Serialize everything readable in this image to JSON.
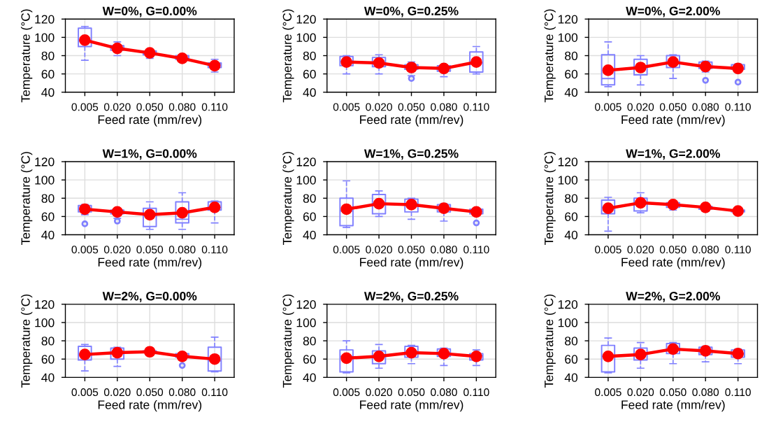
{
  "chart_data": [
    {
      "type": "box",
      "title": "W=0%, G=0.00%",
      "xlabel": "Feed rate (mm/rev)",
      "ylabel": "Temperature (°C)",
      "categories": [
        "0.005",
        "0.020",
        "0.050",
        "0.080",
        "0.110"
      ],
      "ylim": [
        40,
        120
      ],
      "yticks": [
        40,
        60,
        80,
        100,
        120
      ],
      "grid": true,
      "marker": "circle",
      "series": [
        {
          "color": "#8080ff",
          "boxes": [
            {
              "low": 75,
              "q1": 90,
              "median": 96,
              "q3": 110,
              "high": 112
            },
            {
              "low": 80,
              "q1": 86,
              "median": 88,
              "q3": 91,
              "high": 95
            },
            {
              "low": 77,
              "q1": 81,
              "median": 83,
              "q3": 85,
              "high": 86
            },
            {
              "low": 74,
              "q1": 76,
              "median": 77,
              "q3": 80,
              "high": 81
            },
            {
              "low": 62,
              "q1": 67,
              "median": 70,
              "q3": 72,
              "high": 76
            }
          ]
        },
        {
          "type": "line",
          "color": "#ff0000",
          "values": [
            97,
            88,
            83,
            77,
            69
          ]
        }
      ]
    },
    {
      "type": "box",
      "title": "W=0%, G=0.25%",
      "xlabel": "Feed rate (mm/rev)",
      "ylabel": "Temperature (°C)",
      "categories": [
        "0.005",
        "0.020",
        "0.050",
        "0.080",
        "0.110"
      ],
      "ylim": [
        40,
        120
      ],
      "yticks": [
        40,
        60,
        80,
        100,
        120
      ],
      "grid": true,
      "marker": "circle",
      "series": [
        {
          "color": "#8080ff",
          "boxes": [
            {
              "low": 60,
              "q1": 69,
              "median": 74,
              "q3": 79,
              "high": 80
            },
            {
              "low": 60,
              "q1": 68,
              "median": 72,
              "q3": 78,
              "high": 81
            },
            {
              "low": 58,
              "q1": 65,
              "median": 67,
              "q3": 70,
              "high": 73,
              "outliers": [
                55
              ]
            },
            {
              "low": 57,
              "q1": 63,
              "median": 66,
              "q3": 69,
              "high": 70
            },
            {
              "low": 60,
              "q1": 62,
              "median": 72,
              "q3": 84,
              "high": 90
            }
          ]
        },
        {
          "type": "line",
          "color": "#ff0000",
          "values": [
            73,
            72,
            67,
            66,
            73
          ]
        }
      ]
    },
    {
      "type": "box",
      "title": "W=0%, G=2.00%",
      "xlabel": "Feed rate (mm/rev)",
      "ylabel": "Temperature (°C)",
      "categories": [
        "0.005",
        "0.020",
        "0.050",
        "0.080",
        "0.110"
      ],
      "ylim": [
        40,
        120
      ],
      "yticks": [
        40,
        60,
        80,
        100,
        120
      ],
      "grid": true,
      "marker": "circle",
      "series": [
        {
          "color": "#8080ff",
          "boxes": [
            {
              "low": 46,
              "q1": 48,
              "median": 55,
              "q3": 81,
              "high": 95
            },
            {
              "low": 48,
              "q1": 59,
              "median": 68,
              "q3": 76,
              "high": 80
            },
            {
              "low": 55,
              "q1": 67,
              "median": 72,
              "q3": 80,
              "high": 81
            },
            {
              "low": 62,
              "q1": 66,
              "median": 68,
              "q3": 73,
              "high": 74,
              "outliers": [
                53
              ]
            },
            {
              "low": 63,
              "q1": 65,
              "median": 66,
              "q3": 70,
              "high": 71,
              "outliers": [
                51
              ]
            }
          ]
        },
        {
          "type": "line",
          "color": "#ff0000",
          "values": [
            64,
            67,
            73,
            68,
            66
          ]
        }
      ]
    },
    {
      "type": "box",
      "title": "W=1%, G=0.00%",
      "xlabel": "Feed rate (mm/rev)",
      "ylabel": "Temperature (°C)",
      "categories": [
        "0.005",
        "0.020",
        "0.050",
        "0.080",
        "0.110"
      ],
      "ylim": [
        40,
        120
      ],
      "yticks": [
        40,
        60,
        80,
        100,
        120
      ],
      "grid": true,
      "marker": "circle",
      "series": [
        {
          "color": "#8080ff",
          "boxes": [
            {
              "low": 62,
              "q1": 65,
              "median": 68,
              "q3": 72,
              "high": 73,
              "outliers": [
                52
              ]
            },
            {
              "low": 58,
              "q1": 63,
              "median": 65,
              "q3": 67,
              "high": 68,
              "outliers": [
                55
              ]
            },
            {
              "low": 46,
              "q1": 49,
              "median": 61,
              "q3": 69,
              "high": 76
            },
            {
              "low": 46,
              "q1": 53,
              "median": 57,
              "q3": 76,
              "high": 86
            },
            {
              "low": 53,
              "q1": 67,
              "median": 70,
              "q3": 76,
              "high": 77
            }
          ]
        },
        {
          "type": "line",
          "color": "#ff0000",
          "values": [
            68,
            65,
            62,
            64,
            70
          ]
        }
      ]
    },
    {
      "type": "box",
      "title": "W=1%, G=0.25%",
      "xlabel": "Feed rate (mm/rev)",
      "ylabel": "Temperature (°C)",
      "categories": [
        "0.005",
        "0.020",
        "0.050",
        "0.080",
        "0.110"
      ],
      "ylim": [
        40,
        120
      ],
      "yticks": [
        40,
        60,
        80,
        100,
        120
      ],
      "grid": true,
      "marker": "circle",
      "series": [
        {
          "color": "#8080ff",
          "boxes": [
            {
              "low": 48,
              "q1": 50,
              "median": 66,
              "q3": 80,
              "high": 99
            },
            {
              "low": 60,
              "q1": 63,
              "median": 74,
              "q3": 84,
              "high": 88
            },
            {
              "low": 57,
              "q1": 65,
              "median": 74,
              "q3": 79,
              "high": 80
            },
            {
              "low": 55,
              "q1": 65,
              "median": 69,
              "q3": 73,
              "high": 74
            },
            {
              "low": 62,
              "q1": 63,
              "median": 66,
              "q3": 68,
              "high": 69,
              "outliers": [
                53
              ]
            }
          ]
        },
        {
          "type": "line",
          "color": "#ff0000",
          "values": [
            68,
            74,
            73,
            69,
            65
          ]
        }
      ]
    },
    {
      "type": "box",
      "title": "W=1%, G=2.00%",
      "xlabel": "Feed rate (mm/rev)",
      "ylabel": "Temperature (°C)",
      "categories": [
        "0.005",
        "0.020",
        "0.050",
        "0.080",
        "0.110"
      ],
      "ylim": [
        40,
        120
      ],
      "yticks": [
        40,
        60,
        80,
        100,
        120
      ],
      "grid": true,
      "marker": "circle",
      "series": [
        {
          "color": "#8080ff",
          "boxes": [
            {
              "low": 44,
              "q1": 63,
              "median": 70,
              "q3": 78,
              "high": 81
            },
            {
              "low": 64,
              "q1": 66,
              "median": 74,
              "q3": 80,
              "high": 86
            },
            {
              "low": 67,
              "q1": 70,
              "median": 73,
              "q3": 75,
              "high": 76
            },
            {
              "low": 66,
              "q1": 68,
              "median": 70,
              "q3": 71,
              "high": 72
            },
            {
              "low": 64,
              "q1": 65,
              "median": 66,
              "q3": 67,
              "high": 68
            }
          ]
        },
        {
          "type": "line",
          "color": "#ff0000",
          "values": [
            69,
            75,
            73,
            70,
            66
          ]
        }
      ]
    },
    {
      "type": "box",
      "title": "W=2%, G=0.00%",
      "xlabel": "Feed rate (mm/rev)",
      "ylabel": "Temperature (°C)",
      "categories": [
        "0.005",
        "0.020",
        "0.050",
        "0.080",
        "0.110"
      ],
      "ylim": [
        40,
        120
      ],
      "yticks": [
        40,
        60,
        80,
        100,
        120
      ],
      "grid": true,
      "marker": "circle",
      "series": [
        {
          "color": "#8080ff",
          "boxes": [
            {
              "low": 47,
              "q1": 59,
              "median": 66,
              "q3": 74,
              "high": 76
            },
            {
              "low": 52,
              "q1": 60,
              "median": 67,
              "q3": 72,
              "high": 73
            },
            {
              "low": 66,
              "q1": 67,
              "median": 68,
              "q3": 69,
              "high": 70
            },
            {
              "low": 59,
              "q1": 62,
              "median": 63,
              "q3": 66,
              "high": 67,
              "outliers": [
                53
              ]
            },
            {
              "low": 46,
              "q1": 47,
              "median": 58,
              "q3": 73,
              "high": 84
            }
          ]
        },
        {
          "type": "line",
          "color": "#ff0000",
          "values": [
            65,
            67,
            68,
            63,
            60
          ]
        }
      ]
    },
    {
      "type": "box",
      "title": "W=2%, G=0.25%",
      "xlabel": "Feed rate (mm/rev)",
      "ylabel": "Temperature (°C)",
      "categories": [
        "0.005",
        "0.020",
        "0.050",
        "0.080",
        "0.110"
      ],
      "ylim": [
        40,
        120
      ],
      "yticks": [
        40,
        60,
        80,
        100,
        120
      ],
      "grid": true,
      "marker": "circle",
      "series": [
        {
          "color": "#8080ff",
          "boxes": [
            {
              "low": 45,
              "q1": 46,
              "median": 63,
              "q3": 70,
              "high": 80
            },
            {
              "low": 50,
              "q1": 55,
              "median": 63,
              "q3": 69,
              "high": 76
            },
            {
              "low": 55,
              "q1": 62,
              "median": 67,
              "q3": 74,
              "high": 75
            },
            {
              "low": 53,
              "q1": 63,
              "median": 67,
              "q3": 71,
              "high": 72
            },
            {
              "low": 53,
              "q1": 59,
              "median": 64,
              "q3": 66,
              "high": 70
            }
          ]
        },
        {
          "type": "line",
          "color": "#ff0000",
          "values": [
            61,
            63,
            67,
            66,
            63
          ]
        }
      ]
    },
    {
      "type": "box",
      "title": "W=2%, G=2.00%",
      "xlabel": "Feed rate (mm/rev)",
      "ylabel": "Temperature (°C)",
      "categories": [
        "0.005",
        "0.020",
        "0.050",
        "0.080",
        "0.110"
      ],
      "ylim": [
        40,
        120
      ],
      "yticks": [
        40,
        60,
        80,
        100,
        120
      ],
      "grid": true,
      "marker": "circle",
      "series": [
        {
          "color": "#8080ff",
          "boxes": [
            {
              "low": 45,
              "q1": 46,
              "median": 63,
              "q3": 75,
              "high": 83
            },
            {
              "low": 50,
              "q1": 59,
              "median": 65,
              "q3": 72,
              "high": 78
            },
            {
              "low": 55,
              "q1": 66,
              "median": 71,
              "q3": 77,
              "high": 78
            },
            {
              "low": 57,
              "q1": 65,
              "median": 69,
              "q3": 73,
              "high": 74
            },
            {
              "low": 55,
              "q1": 62,
              "median": 66,
              "q3": 70,
              "high": 71
            }
          ]
        },
        {
          "type": "line",
          "color": "#ff0000",
          "values": [
            63,
            65,
            71,
            69,
            66
          ]
        }
      ]
    }
  ]
}
